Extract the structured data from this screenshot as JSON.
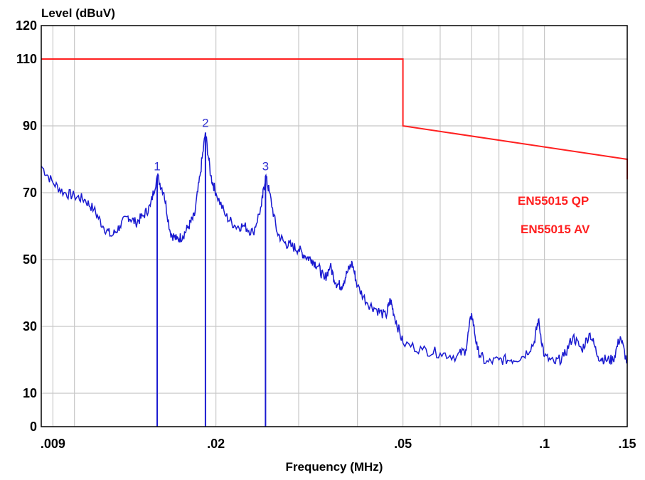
{
  "chart_data": {
    "type": "line",
    "xlabel": "Frequency (MHz)",
    "ylabel": "Level (dBuV)",
    "x_scale": "log",
    "xlim": [
      0.0085,
      0.15
    ],
    "ylim": [
      0,
      120
    ],
    "x_ticks": [
      0.009,
      0.02,
      0.05,
      0.1,
      0.15
    ],
    "x_tick_labels": [
      ".009",
      ".02",
      ".05",
      ".1",
      ".15"
    ],
    "x_gridlines": [
      0.009,
      0.01,
      0.02,
      0.03,
      0.04,
      0.05,
      0.06,
      0.07,
      0.08,
      0.09,
      0.1,
      0.15
    ],
    "y_ticks": [
      0,
      10,
      30,
      50,
      70,
      90,
      110,
      120
    ],
    "y_tick_labels": [
      "0",
      "10",
      "30",
      "50",
      "70",
      "90",
      "110",
      "120"
    ],
    "y_gridlines": [
      10,
      30,
      50,
      70,
      90,
      110
    ],
    "grid": true,
    "limit_lines": [
      {
        "name": "EN55015 QP",
        "color": "#ff2020",
        "points": [
          [
            0.0085,
            110
          ],
          [
            0.05,
            110
          ],
          [
            0.05,
            90
          ],
          [
            0.15,
            80
          ],
          [
            0.15,
            74
          ]
        ]
      }
    ],
    "limit_labels": [
      "EN55015 QP",
      "EN55015 AV"
    ],
    "spectrum": {
      "color": "#1a1ad0",
      "points": [
        [
          0.0085,
          78
        ],
        [
          0.009,
          73
        ],
        [
          0.0095,
          70
        ],
        [
          0.01,
          69
        ],
        [
          0.0105,
          68
        ],
        [
          0.011,
          65
        ],
        [
          0.0115,
          60
        ],
        [
          0.012,
          57
        ],
        [
          0.0125,
          60
        ],
        [
          0.013,
          63
        ],
        [
          0.0135,
          61
        ],
        [
          0.014,
          63
        ],
        [
          0.0145,
          66
        ],
        [
          0.015,
          75
        ],
        [
          0.0155,
          70
        ],
        [
          0.016,
          58
        ],
        [
          0.0165,
          56
        ],
        [
          0.017,
          57
        ],
        [
          0.0175,
          60
        ],
        [
          0.018,
          63
        ],
        [
          0.0185,
          75
        ],
        [
          0.019,
          88
        ],
        [
          0.0195,
          75
        ],
        [
          0.02,
          70
        ],
        [
          0.021,
          63
        ],
        [
          0.022,
          60
        ],
        [
          0.023,
          60
        ],
        [
          0.024,
          58
        ],
        [
          0.025,
          66
        ],
        [
          0.0255,
          75
        ],
        [
          0.026,
          70
        ],
        [
          0.027,
          58
        ],
        [
          0.028,
          55
        ],
        [
          0.029,
          54
        ],
        [
          0.03,
          53
        ],
        [
          0.031,
          51
        ],
        [
          0.032,
          50
        ],
        [
          0.033,
          48
        ],
        [
          0.034,
          44
        ],
        [
          0.035,
          48
        ],
        [
          0.036,
          43
        ],
        [
          0.037,
          42
        ],
        [
          0.038,
          46
        ],
        [
          0.039,
          49
        ],
        [
          0.04,
          42
        ],
        [
          0.042,
          37
        ],
        [
          0.044,
          35
        ],
        [
          0.046,
          33
        ],
        [
          0.047,
          38
        ],
        [
          0.048,
          33
        ],
        [
          0.05,
          25
        ],
        [
          0.055,
          23
        ],
        [
          0.06,
          22
        ],
        [
          0.065,
          21
        ],
        [
          0.068,
          23
        ],
        [
          0.07,
          34
        ],
        [
          0.072,
          23
        ],
        [
          0.075,
          19
        ],
        [
          0.08,
          20
        ],
        [
          0.085,
          20
        ],
        [
          0.09,
          21
        ],
        [
          0.095,
          25
        ],
        [
          0.097,
          32
        ],
        [
          0.1,
          21
        ],
        [
          0.105,
          19
        ],
        [
          0.11,
          21
        ],
        [
          0.115,
          27
        ],
        [
          0.12,
          23
        ],
        [
          0.125,
          28
        ],
        [
          0.13,
          21
        ],
        [
          0.135,
          20
        ],
        [
          0.14,
          20
        ],
        [
          0.145,
          27
        ],
        [
          0.15,
          19
        ]
      ]
    },
    "markers": [
      {
        "label": "1",
        "x": 0.015,
        "y": 75
      },
      {
        "label": "2",
        "x": 0.019,
        "y": 88
      },
      {
        "label": "3",
        "x": 0.0255,
        "y": 75
      }
    ]
  }
}
